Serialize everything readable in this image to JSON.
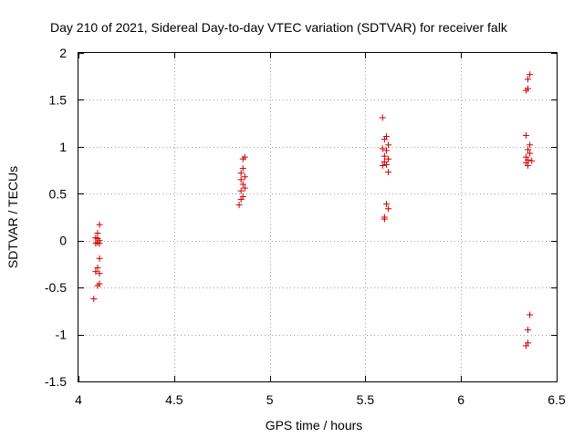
{
  "chart_data": {
    "type": "scatter",
    "title": "Day 210 of 2021, Sidereal Day-to-day VTEC variation (SDTVAR) for receiver falk",
    "xlabel": "GPS time / hours",
    "ylabel": "SDTVAR / TECUs",
    "xlim": [
      4,
      6.5
    ],
    "ylim": [
      -1.5,
      2
    ],
    "x_ticks": [
      4,
      4.5,
      5,
      5.5,
      6,
      6.5
    ],
    "x_tick_labels": [
      "4",
      "4.5",
      "5",
      "5.5",
      "6",
      "6.5"
    ],
    "y_ticks": [
      -1.5,
      -1,
      -0.5,
      0,
      0.5,
      1,
      1.5,
      2
    ],
    "y_tick_labels": [
      "-1.5",
      "-1",
      "-0.5",
      "0",
      "0.5",
      "1",
      "1.5",
      "2"
    ],
    "grid": true,
    "marker": "+",
    "color": "#cc0000",
    "series": [
      {
        "name": "SDTVAR",
        "points": [
          [
            4.11,
            0.17
          ],
          [
            4.1,
            0.08
          ],
          [
            4.09,
            0.03
          ],
          [
            4.1,
            0.02
          ],
          [
            4.11,
            0.0
          ],
          [
            4.1,
            -0.02
          ],
          [
            4.09,
            -0.03
          ],
          [
            4.11,
            -0.03
          ],
          [
            4.11,
            -0.19
          ],
          [
            4.1,
            -0.29
          ],
          [
            4.09,
            -0.33
          ],
          [
            4.11,
            -0.35
          ],
          [
            4.11,
            -0.46
          ],
          [
            4.1,
            -0.48
          ],
          [
            4.08,
            -0.62
          ],
          [
            4.87,
            0.89
          ],
          [
            4.86,
            0.87
          ],
          [
            4.86,
            0.77
          ],
          [
            4.85,
            0.72
          ],
          [
            4.87,
            0.68
          ],
          [
            4.85,
            0.65
          ],
          [
            4.86,
            0.6
          ],
          [
            4.87,
            0.56
          ],
          [
            4.85,
            0.53
          ],
          [
            4.86,
            0.47
          ],
          [
            4.85,
            0.44
          ],
          [
            4.84,
            0.38
          ],
          [
            5.59,
            1.31
          ],
          [
            5.61,
            1.11
          ],
          [
            5.6,
            1.08
          ],
          [
            5.62,
            1.02
          ],
          [
            5.59,
            0.98
          ],
          [
            5.61,
            0.96
          ],
          [
            5.6,
            0.9
          ],
          [
            5.62,
            0.87
          ],
          [
            5.6,
            0.84
          ],
          [
            5.61,
            0.81
          ],
          [
            5.59,
            0.8
          ],
          [
            5.62,
            0.73
          ],
          [
            5.61,
            0.39
          ],
          [
            5.62,
            0.34
          ],
          [
            5.6,
            0.25
          ],
          [
            5.6,
            0.23
          ],
          [
            6.36,
            1.77
          ],
          [
            6.35,
            1.72
          ],
          [
            6.35,
            1.62
          ],
          [
            6.34,
            1.6
          ],
          [
            6.34,
            1.12
          ],
          [
            6.36,
            1.02
          ],
          [
            6.35,
            0.97
          ],
          [
            6.36,
            0.93
          ],
          [
            6.34,
            0.89
          ],
          [
            6.35,
            0.86
          ],
          [
            6.37,
            0.85
          ],
          [
            6.34,
            0.83
          ],
          [
            6.35,
            0.8
          ],
          [
            6.36,
            -0.79
          ],
          [
            6.35,
            -0.95
          ],
          [
            6.35,
            -1.09
          ],
          [
            6.34,
            -1.12
          ]
        ]
      }
    ]
  }
}
